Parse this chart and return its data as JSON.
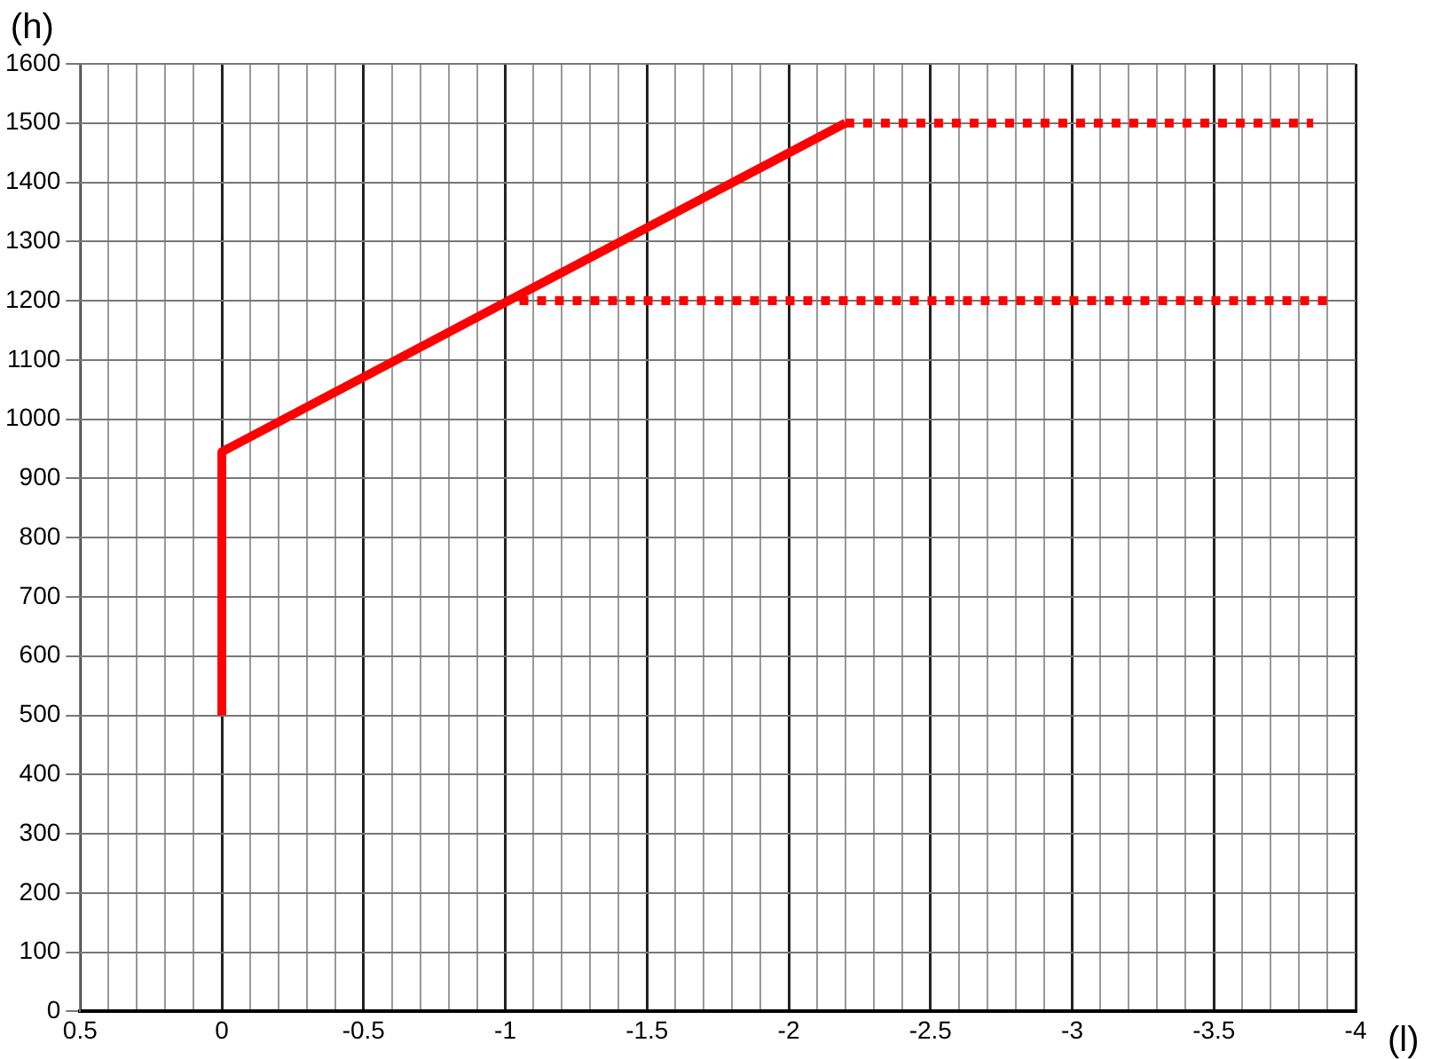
{
  "chart_data": {
    "type": "line",
    "xlabel": "(l)",
    "ylabel": "(h)",
    "xlim": [
      0.5,
      -4
    ],
    "ylim": [
      0,
      1600
    ],
    "xticks": [
      0.5,
      {
        "value": 0.4,
        "label": null
      },
      {
        "value": 0.3,
        "label": null
      },
      {
        "value": 0.2,
        "label": null
      },
      {
        "value": 0.1,
        "label": null
      },
      0,
      {
        "value": -0.1,
        "label": null
      },
      {
        "value": -0.2,
        "label": null
      },
      {
        "value": -0.3,
        "label": null
      },
      {
        "value": -0.4,
        "label": null
      },
      -0.5,
      {
        "value": -0.6,
        "label": null
      },
      {
        "value": -0.7,
        "label": null
      },
      {
        "value": -0.8,
        "label": null
      },
      {
        "value": -0.9,
        "label": null
      },
      -1,
      {
        "value": -1.1,
        "label": null
      },
      {
        "value": -1.2,
        "label": null
      },
      {
        "value": -1.3,
        "label": null
      },
      {
        "value": -1.4,
        "label": null
      },
      -1.5,
      {
        "value": -1.6,
        "label": null
      },
      {
        "value": -1.7,
        "label": null
      },
      {
        "value": -1.8,
        "label": null
      },
      {
        "value": -1.9,
        "label": null
      },
      -2,
      {
        "value": -2.1,
        "label": null
      },
      {
        "value": -2.2,
        "label": null
      },
      {
        "value": -2.3,
        "label": null
      },
      {
        "value": -2.4,
        "label": null
      },
      -2.5,
      {
        "value": -2.6,
        "label": null
      },
      {
        "value": -2.7,
        "label": null
      },
      {
        "value": -2.8,
        "label": null
      },
      {
        "value": -2.9,
        "label": null
      },
      -3,
      {
        "value": -3.1,
        "label": null
      },
      {
        "value": -3.2,
        "label": null
      },
      {
        "value": -3.3,
        "label": null
      },
      {
        "value": -3.4,
        "label": null
      },
      -3.5,
      {
        "value": -3.6,
        "label": null
      },
      {
        "value": -3.7,
        "label": null
      },
      {
        "value": -3.8,
        "label": null
      },
      {
        "value": -3.9,
        "label": null
      },
      -4
    ],
    "yticks": [
      0,
      100,
      200,
      300,
      400,
      500,
      600,
      700,
      800,
      900,
      1000,
      1100,
      1200,
      1300,
      1400,
      1500,
      1600
    ],
    "grid": true,
    "legend": false,
    "marker": "none",
    "series": [
      {
        "color": "#ff0000",
        "x": [
          0,
          0,
          -2.2
        ],
        "values": [
          500,
          945,
          1500
        ],
        "line_style": "solid"
      },
      {
        "color": "#ff0000",
        "x": [
          -2.2,
          -3.85
        ],
        "values": [
          1500,
          1500
        ],
        "line_style": "dotted"
      },
      {
        "color": "#ff0000",
        "x": [
          -1.05,
          -3.9
        ],
        "values": [
          1200,
          1200
        ],
        "line_style": "dotted"
      }
    ]
  }
}
